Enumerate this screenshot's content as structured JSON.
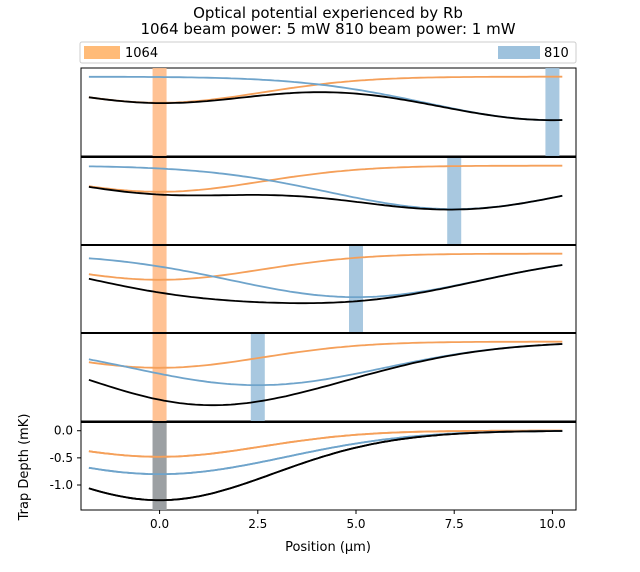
{
  "chart_data": {
    "type": "line",
    "title": "Optical potential experienced by Rb",
    "subtitle": "1064 beam power: 5 mW   810 beam power: 1 mW",
    "xlabel": "Position (μm)",
    "ylabel": "Trap Depth (mK)",
    "x_ticks": [
      "0.0",
      "2.5",
      "5.0",
      "7.5",
      "10.0"
    ],
    "y_ticks": [
      "0.0",
      "-0.5",
      "-1.0"
    ],
    "xlim": [
      -2.0,
      10.6
    ],
    "ylim": [
      -1.35,
      0.05
    ],
    "legend": {
      "placement": "top",
      "entries": [
        {
          "name": "1064",
          "color": "#ffbb78"
        },
        {
          "name": "810",
          "color": "#9ec2dd"
        }
      ]
    },
    "colors": {
      "beam_1064": "#f5a05a",
      "beam_810": "#6fa4cb",
      "total": "#000000",
      "marker_1064": "#ffbb88",
      "marker_810": "#9ec2dd"
    },
    "beam_1064_position": 0.0,
    "panels": [
      {
        "beam_810_position": 10.0
      },
      {
        "beam_810_position": 7.5
      },
      {
        "beam_810_position": 5.0
      },
      {
        "beam_810_position": 2.5
      },
      {
        "beam_810_position": 0.0
      }
    ],
    "bottom_panel_series": {
      "x": [
        -2.0,
        -1.0,
        0.0,
        1.0,
        2.0,
        3.0,
        4.0,
        5.0,
        6.0,
        7.0,
        8.0,
        9.0,
        10.0
      ],
      "series": [
        {
          "label": "1064",
          "values": [
            -0.34,
            -0.43,
            -0.48,
            -0.43,
            -0.34,
            -0.25,
            -0.18,
            -0.12,
            -0.08,
            -0.05,
            -0.03,
            -0.02,
            -0.01
          ]
        },
        {
          "label": "810",
          "values": [
            -0.63,
            -0.74,
            -0.8,
            -0.77,
            -0.67,
            -0.55,
            -0.45,
            -0.36,
            -0.29,
            -0.23,
            -0.19,
            -0.16,
            -0.14
          ]
        },
        {
          "label": "total",
          "values": [
            -0.97,
            -1.17,
            -1.28,
            -1.2,
            -1.01,
            -0.8,
            -0.63,
            -0.48,
            -0.37,
            -0.28,
            -0.22,
            -0.18,
            -0.15
          ]
        }
      ]
    }
  }
}
